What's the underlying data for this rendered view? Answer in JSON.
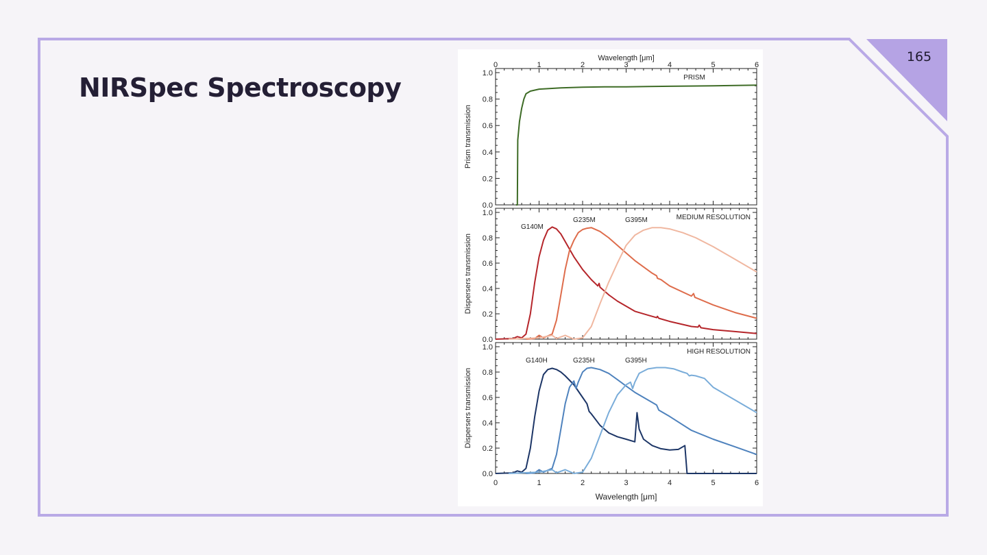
{
  "slide": {
    "title": "NIRSpec Spectroscopy",
    "page_number": "165",
    "frame_color": "#b9a9e6",
    "corner_color": "#b5a3e4"
  },
  "chart_data": [
    {
      "type": "line",
      "panel": "PRISM",
      "xlabel": "Wavelength [μm]",
      "ylabel": "Prism transmission",
      "xlim": [
        0,
        6
      ],
      "ylim": [
        0,
        1.0
      ],
      "x_ticks": [
        "0",
        "1",
        "2",
        "3",
        "4",
        "5",
        "6"
      ],
      "y_ticks": [
        "0.0",
        "0.2",
        "0.4",
        "0.6",
        "0.8",
        "1.0"
      ],
      "series": [
        {
          "name": "PRISM",
          "color": "#3d6b25",
          "points": [
            [
              0.47,
              0.0
            ],
            [
              0.5,
              0.0
            ],
            [
              0.51,
              0.49
            ],
            [
              0.55,
              0.63
            ],
            [
              0.6,
              0.73
            ],
            [
              0.65,
              0.8
            ],
            [
              0.7,
              0.84
            ],
            [
              0.8,
              0.86
            ],
            [
              1.0,
              0.875
            ],
            [
              1.5,
              0.885
            ],
            [
              2.0,
              0.89
            ],
            [
              2.5,
              0.893
            ],
            [
              3.0,
              0.893
            ],
            [
              3.5,
              0.895
            ],
            [
              4.0,
              0.897
            ],
            [
              5.0,
              0.9
            ],
            [
              6.0,
              0.905
            ]
          ]
        }
      ]
    },
    {
      "type": "line",
      "panel": "MEDIUM RESOLUTION",
      "ylabel": "Dispersers transmission",
      "xlim": [
        0,
        6
      ],
      "ylim": [
        0,
        1.0
      ],
      "y_ticks": [
        "0.0",
        "0.2",
        "0.4",
        "0.6",
        "0.8",
        "1.0"
      ],
      "series": [
        {
          "name": "G140M",
          "color": "#b5252a",
          "points": [
            [
              0.0,
              0.0
            ],
            [
              0.4,
              0.005
            ],
            [
              0.5,
              0.02
            ],
            [
              0.6,
              0.01
            ],
            [
              0.7,
              0.04
            ],
            [
              0.8,
              0.2
            ],
            [
              0.9,
              0.45
            ],
            [
              1.0,
              0.65
            ],
            [
              1.1,
              0.78
            ],
            [
              1.2,
              0.86
            ],
            [
              1.3,
              0.885
            ],
            [
              1.4,
              0.87
            ],
            [
              1.5,
              0.83
            ],
            [
              1.6,
              0.77
            ],
            [
              1.8,
              0.65
            ],
            [
              2.0,
              0.55
            ],
            [
              2.2,
              0.47
            ],
            [
              2.35,
              0.42
            ],
            [
              2.38,
              0.44
            ],
            [
              2.4,
              0.41
            ],
            [
              2.6,
              0.35
            ],
            [
              2.8,
              0.3
            ],
            [
              3.0,
              0.26
            ],
            [
              3.2,
              0.22
            ],
            [
              3.5,
              0.19
            ],
            [
              3.7,
              0.17
            ],
            [
              3.72,
              0.18
            ],
            [
              3.75,
              0.165
            ],
            [
              4.0,
              0.14
            ],
            [
              4.5,
              0.1
            ],
            [
              4.65,
              0.095
            ],
            [
              4.68,
              0.11
            ],
            [
              4.72,
              0.09
            ],
            [
              5.0,
              0.075
            ],
            [
              5.5,
              0.06
            ],
            [
              6.0,
              0.045
            ]
          ]
        },
        {
          "name": "G235M",
          "color": "#de6c4b",
          "points": [
            [
              0.7,
              0.0
            ],
            [
              0.9,
              0.005
            ],
            [
              1.0,
              0.03
            ],
            [
              1.1,
              0.01
            ],
            [
              1.3,
              0.04
            ],
            [
              1.4,
              0.15
            ],
            [
              1.5,
              0.35
            ],
            [
              1.6,
              0.55
            ],
            [
              1.7,
              0.7
            ],
            [
              1.8,
              0.78
            ],
            [
              1.9,
              0.84
            ],
            [
              2.0,
              0.865
            ],
            [
              2.1,
              0.875
            ],
            [
              2.2,
              0.88
            ],
            [
              2.4,
              0.85
            ],
            [
              2.6,
              0.8
            ],
            [
              2.8,
              0.74
            ],
            [
              3.0,
              0.68
            ],
            [
              3.2,
              0.62
            ],
            [
              3.4,
              0.57
            ],
            [
              3.6,
              0.52
            ],
            [
              3.7,
              0.5
            ],
            [
              3.72,
              0.48
            ],
            [
              3.8,
              0.47
            ],
            [
              4.0,
              0.42
            ],
            [
              4.5,
              0.34
            ],
            [
              4.55,
              0.36
            ],
            [
              4.58,
              0.33
            ],
            [
              5.0,
              0.27
            ],
            [
              5.5,
              0.21
            ],
            [
              6.0,
              0.165
            ]
          ]
        },
        {
          "name": "G395M",
          "color": "#f0b7a0",
          "points": [
            [
              0.3,
              0.0
            ],
            [
              1.0,
              0.01
            ],
            [
              1.3,
              0.03
            ],
            [
              1.4,
              0.005
            ],
            [
              1.6,
              0.03
            ],
            [
              1.8,
              0.0
            ],
            [
              2.0,
              0.01
            ],
            [
              2.2,
              0.1
            ],
            [
              2.4,
              0.28
            ],
            [
              2.6,
              0.45
            ],
            [
              2.8,
              0.6
            ],
            [
              3.0,
              0.74
            ],
            [
              3.2,
              0.82
            ],
            [
              3.4,
              0.86
            ],
            [
              3.6,
              0.88
            ],
            [
              3.8,
              0.88
            ],
            [
              4.0,
              0.87
            ],
            [
              4.3,
              0.84
            ],
            [
              4.6,
              0.8
            ],
            [
              5.0,
              0.73
            ],
            [
              5.5,
              0.63
            ],
            [
              6.0,
              0.53
            ]
          ]
        }
      ]
    },
    {
      "type": "line",
      "panel": "HIGH RESOLUTION",
      "xlabel": "Wavelength [μm]",
      "ylabel": "Dispersers transmission",
      "xlim": [
        0,
        6
      ],
      "ylim": [
        0,
        1.0
      ],
      "x_ticks": [
        "0",
        "1",
        "2",
        "3",
        "4",
        "5",
        "6"
      ],
      "y_ticks": [
        "0.0",
        "0.2",
        "0.4",
        "0.6",
        "0.8",
        "1.0"
      ],
      "series": [
        {
          "name": "G140H",
          "color": "#1c3566",
          "points": [
            [
              0.0,
              0.0
            ],
            [
              0.4,
              0.005
            ],
            [
              0.5,
              0.02
            ],
            [
              0.6,
              0.01
            ],
            [
              0.7,
              0.04
            ],
            [
              0.8,
              0.2
            ],
            [
              0.9,
              0.45
            ],
            [
              1.0,
              0.65
            ],
            [
              1.1,
              0.78
            ],
            [
              1.2,
              0.82
            ],
            [
              1.3,
              0.83
            ],
            [
              1.4,
              0.82
            ],
            [
              1.5,
              0.8
            ],
            [
              1.6,
              0.77
            ],
            [
              1.8,
              0.7
            ],
            [
              2.0,
              0.6
            ],
            [
              2.1,
              0.55
            ],
            [
              2.15,
              0.49
            ],
            [
              2.2,
              0.47
            ],
            [
              2.4,
              0.38
            ],
            [
              2.6,
              0.32
            ],
            [
              2.8,
              0.29
            ],
            [
              3.0,
              0.27
            ],
            [
              3.2,
              0.25
            ],
            [
              3.25,
              0.48
            ],
            [
              3.3,
              0.35
            ],
            [
              3.4,
              0.27
            ],
            [
              3.6,
              0.22
            ],
            [
              3.8,
              0.195
            ],
            [
              4.0,
              0.185
            ],
            [
              4.2,
              0.19
            ],
            [
              4.35,
              0.22
            ],
            [
              4.4,
              0.0
            ],
            [
              6.0,
              0.0
            ]
          ]
        },
        {
          "name": "G235H",
          "color": "#4e82bd",
          "points": [
            [
              0.7,
              0.0
            ],
            [
              0.9,
              0.005
            ],
            [
              1.0,
              0.03
            ],
            [
              1.1,
              0.01
            ],
            [
              1.3,
              0.04
            ],
            [
              1.4,
              0.15
            ],
            [
              1.5,
              0.35
            ],
            [
              1.6,
              0.55
            ],
            [
              1.7,
              0.68
            ],
            [
              1.8,
              0.73
            ],
            [
              1.85,
              0.67
            ],
            [
              1.9,
              0.72
            ],
            [
              2.0,
              0.8
            ],
            [
              2.1,
              0.83
            ],
            [
              2.2,
              0.835
            ],
            [
              2.4,
              0.82
            ],
            [
              2.6,
              0.79
            ],
            [
              2.8,
              0.74
            ],
            [
              3.0,
              0.69
            ],
            [
              3.2,
              0.64
            ],
            [
              3.4,
              0.6
            ],
            [
              3.6,
              0.56
            ],
            [
              3.7,
              0.54
            ],
            [
              3.75,
              0.5
            ],
            [
              3.8,
              0.49
            ],
            [
              4.0,
              0.45
            ],
            [
              4.5,
              0.34
            ],
            [
              5.0,
              0.27
            ],
            [
              5.5,
              0.21
            ],
            [
              6.0,
              0.15
            ]
          ]
        },
        {
          "name": "G395H",
          "color": "#79acd9",
          "points": [
            [
              0.3,
              0.0
            ],
            [
              1.0,
              0.01
            ],
            [
              1.3,
              0.03
            ],
            [
              1.4,
              0.005
            ],
            [
              1.6,
              0.03
            ],
            [
              1.8,
              0.0
            ],
            [
              2.0,
              0.01
            ],
            [
              2.2,
              0.12
            ],
            [
              2.4,
              0.3
            ],
            [
              2.6,
              0.48
            ],
            [
              2.8,
              0.62
            ],
            [
              3.0,
              0.7
            ],
            [
              3.1,
              0.72
            ],
            [
              3.15,
              0.67
            ],
            [
              3.2,
              0.72
            ],
            [
              3.3,
              0.79
            ],
            [
              3.5,
              0.825
            ],
            [
              3.7,
              0.835
            ],
            [
              3.9,
              0.835
            ],
            [
              4.1,
              0.825
            ],
            [
              4.3,
              0.8
            ],
            [
              4.4,
              0.79
            ],
            [
              4.45,
              0.77
            ],
            [
              4.5,
              0.775
            ],
            [
              4.6,
              0.77
            ],
            [
              4.8,
              0.75
            ],
            [
              5.0,
              0.68
            ],
            [
              5.5,
              0.58
            ],
            [
              6.0,
              0.48
            ]
          ]
        }
      ]
    }
  ]
}
